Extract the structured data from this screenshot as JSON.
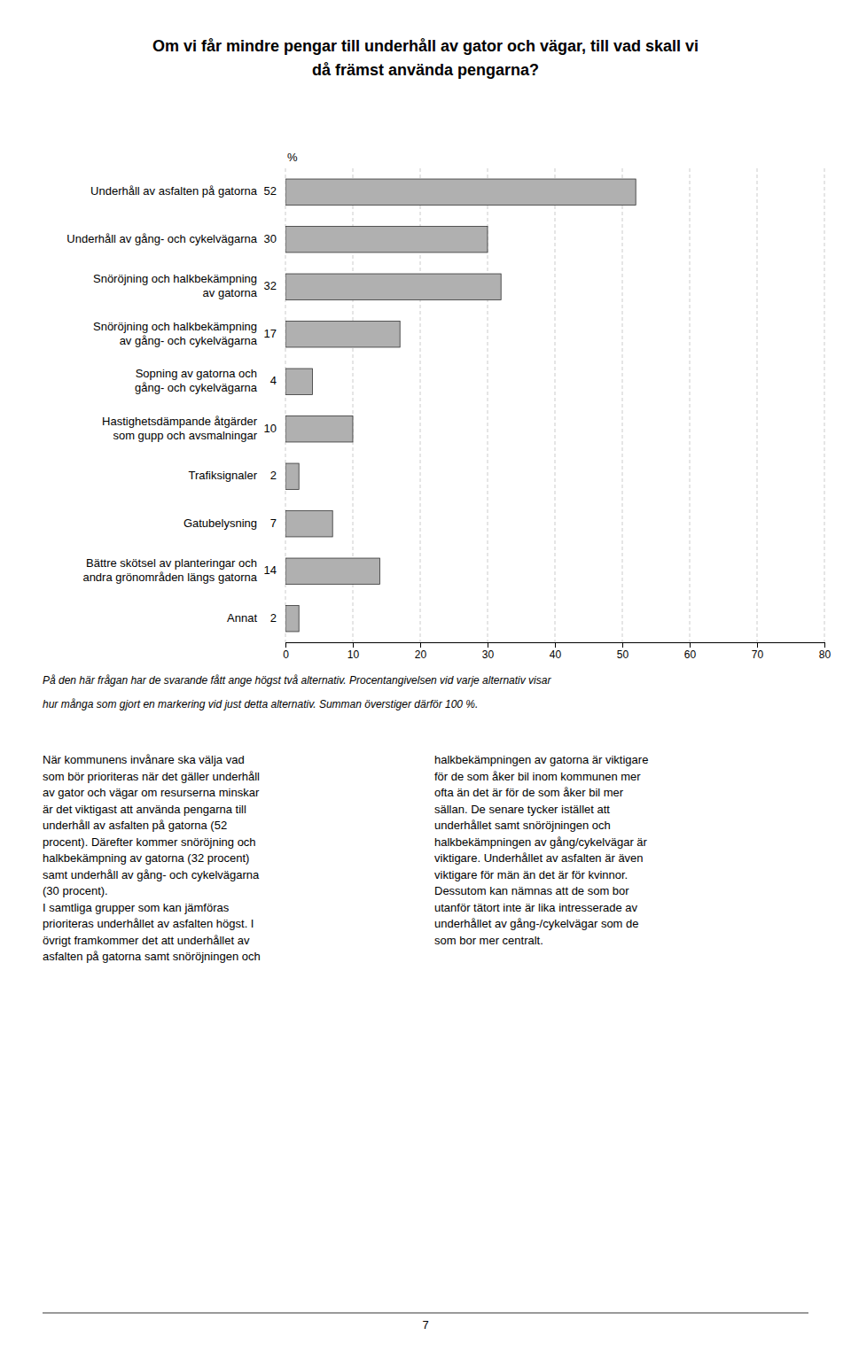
{
  "chart_data": {
    "type": "bar",
    "orientation": "horizontal",
    "title": [
      "Om vi får mindre pengar till underhåll av gator och vägar, till vad skall vi",
      "då främst använda pengarna?"
    ],
    "xlabel": "%",
    "categories": [
      "Underhåll av asfalten på gatorna",
      "Underhåll av gång- och cykelvägarna",
      "Snöröjning och halkbekämpning\nav gatorna",
      "Snöröjning och halkbekämpning\nav gång- och cykelvägarna",
      "Sopning av gatorna och\ngång- och cykelvägarna",
      "Hastighetsdämpande åtgärder\nsom gupp och avsmalningar",
      "Trafiksignaler",
      "Gatubelysning",
      "Bättre skötsel av planteringar och\nandra grönområden längs gatorna",
      "Annat"
    ],
    "values": [
      52,
      30,
      32,
      17,
      4,
      10,
      2,
      7,
      14,
      2
    ],
    "color": "#b0b0b0",
    "xlim": [
      0,
      80
    ],
    "xticks": [
      0,
      10,
      20,
      30,
      40,
      50,
      60,
      70,
      80
    ],
    "grid": true,
    "data_labels": true,
    "annotations": [
      "På den här frågan har de svarande fått ange högst två alternativ. Procentangivelsen vid varje alternativ visar",
      "hur många som gjort en markering vid just detta alternativ. Summan överstiger därför 100 %.",
      "När kommunens invånare ska välja vad\nsom bör prioriteras när det gäller underhåll\nav gator och vägar om resurserna minskar\när det viktigast att använda pengarna till\nunderhåll av asfalten på gatorna (52\nprocent). Därefter kommer snöröjning och\nhalkbekämpning av gatorna (32 procent)\nsamt underhåll av gång- och cykelvägarna\n(30 procent).\nI samtliga grupper som kan jämföras\nprioriteras underhållet av asfalten högst. I\növrigt framkommer det att underhållet av\nasfalten på gatorna samt snöröjningen och",
      "halkbekämpningen av gatorna är viktigare\nför de som åker bil inom kommunen mer\nofta än det är för de som åker bil mer\nsällan. De senare tycker istället att\nunderhållet samt snöröjningen och\nhalkbekämpningen av gång/cykelvägar är\nviktigare. Underhållet av asfalten är även\nviktigare för män än det är för kvinnor.\nDessutom kan nämnas att de som bor\nutanför tätort inte är lika intresserade av\nunderhållet av gång-/cykelvägar som de\nsom bor mer centralt.",
      "7"
    ]
  }
}
